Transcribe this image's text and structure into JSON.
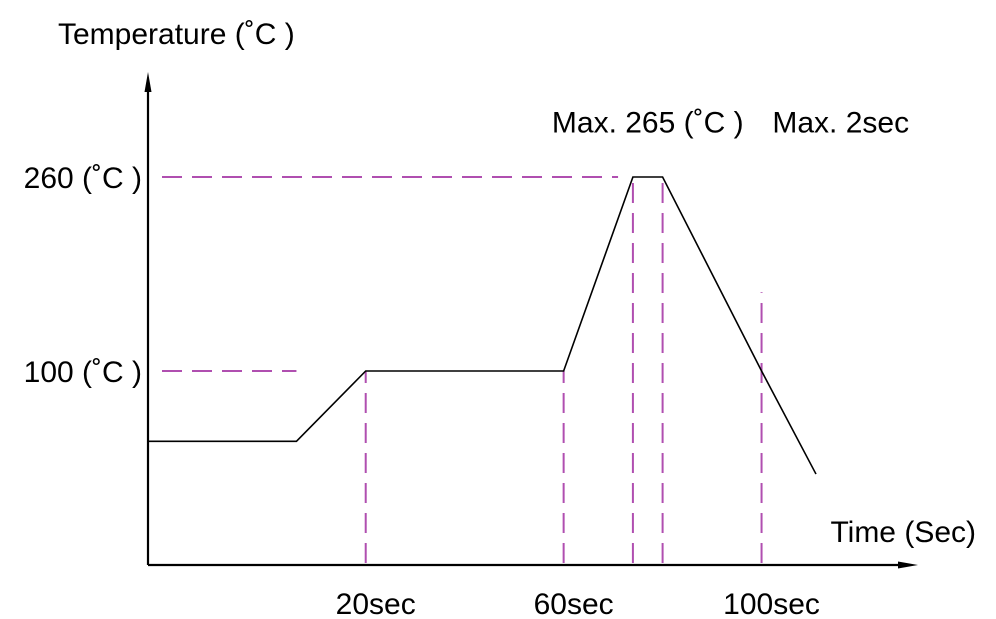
{
  "chart_data": {
    "type": "line",
    "title": "",
    "ylabel": "Temperature (˚C )",
    "xlabel": "Time (Sec)",
    "y_ticks": [
      {
        "value": 100,
        "label": "100 (˚C )"
      },
      {
        "value": 260,
        "label": "260 (˚C )"
      }
    ],
    "x_ticks": [
      {
        "value": 20,
        "label": "20sec"
      },
      {
        "value": 60,
        "label": "60sec"
      },
      {
        "value": 100,
        "label": "100sec"
      }
    ],
    "xlim": [
      -24,
      130
    ],
    "ylim": [
      -60,
      340
    ],
    "series": [
      {
        "x": [
          -24,
          6,
          20,
          60,
          74,
          80,
          100,
          111
        ],
        "y": [
          42,
          42,
          100,
          100,
          260,
          260,
          100,
          15
        ]
      }
    ],
    "reference_lines": [
      {
        "orientation": "horizontal",
        "value": 260,
        "from": -24,
        "to": 71
      },
      {
        "orientation": "horizontal",
        "value": 100,
        "from": -24,
        "to": 6
      },
      {
        "orientation": "vertical",
        "value": 20,
        "from": -60,
        "to": 100
      },
      {
        "orientation": "vertical",
        "value": 60,
        "from": -60,
        "to": 100
      },
      {
        "orientation": "vertical",
        "value": 74,
        "from": -60,
        "to": 260
      },
      {
        "orientation": "vertical",
        "value": 80,
        "from": -60,
        "to": 260
      },
      {
        "orientation": "vertical",
        "value": 100,
        "from": -60,
        "to": 165
      }
    ],
    "annotations": [
      {
        "text": "Max. 265 (˚C )",
        "x": 77,
        "y": 305
      },
      {
        "text": "Max. 2sec",
        "x": 116,
        "y": 305
      }
    ],
    "grid": false,
    "legend": "none",
    "colors": {
      "line": "#000000",
      "axis": "#000000",
      "reference": "#b04fb0"
    }
  }
}
